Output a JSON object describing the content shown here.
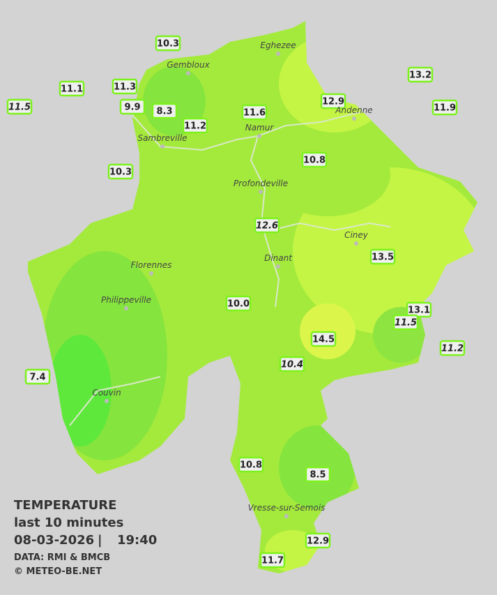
{
  "stations": [
    {
      "value": "10.3",
      "italic": false
    },
    {
      "value": "11.1",
      "italic": false
    },
    {
      "value": "11.5",
      "italic": true
    },
    {
      "value": "11.3",
      "italic": false
    },
    {
      "value": "9.9",
      "italic": false
    },
    {
      "value": "8.3",
      "italic": false
    },
    {
      "value": "11.2",
      "italic": false
    },
    {
      "value": "11.6",
      "italic": false
    },
    {
      "value": "12.9",
      "italic": false
    },
    {
      "value": "13.2",
      "italic": false
    },
    {
      "value": "11.9",
      "italic": false
    },
    {
      "value": "10.3",
      "italic": false
    },
    {
      "value": "10.8",
      "italic": false
    },
    {
      "value": "12.6",
      "italic": true
    },
    {
      "value": "13.5",
      "italic": false
    },
    {
      "value": "10.0",
      "italic": false
    },
    {
      "value": "13.1",
      "italic": false
    },
    {
      "value": "11.5",
      "italic": true
    },
    {
      "value": "14.5",
      "italic": false
    },
    {
      "value": "11.2",
      "italic": true
    },
    {
      "value": "10.4",
      "italic": true
    },
    {
      "value": "7.4",
      "italic": false
    },
    {
      "value": "10.8",
      "italic": false
    },
    {
      "value": "8.5",
      "italic": false
    },
    {
      "value": "12.9",
      "italic": false
    },
    {
      "value": "11.7",
      "italic": false
    }
  ],
  "cities": [
    "Eghezee",
    "Gembloux",
    "Andenne",
    "Namur",
    "Sambreville",
    "Profondeville",
    "Ciney",
    "Dinant",
    "Florennes",
    "Philippeville",
    "Couvin",
    "Vresse-sur-Semois"
  ],
  "legend": {
    "title": "TEMPERATURE",
    "subtitle": "last 10 minutes",
    "date": "08-03-2026",
    "time": "19:40",
    "separator": "|",
    "source": "DATA: RMI & BMCB",
    "copyright": "© METEO-BE.NET"
  }
}
